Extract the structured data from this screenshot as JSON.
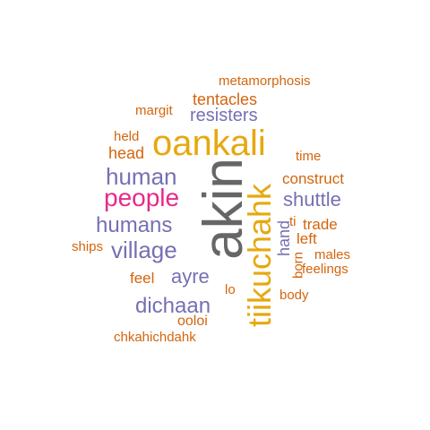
{
  "words": {
    "akin": "akin",
    "tiikuchahk": "tiikuchahk",
    "oankali": "oankali",
    "people": "people",
    "human": "human",
    "humans": "humans",
    "village": "village",
    "dichaan": "dichaan",
    "ayre": "ayre",
    "resisters": "resisters",
    "shuttle": "shuttle",
    "tentacles": "tentacles",
    "metamorphosis": "metamorphosis",
    "margit": "margit",
    "held": "held",
    "head": "head",
    "time": "time",
    "construct": "construct",
    "trade": "trade",
    "left": "left",
    "males": "males",
    "feelings": "feelings",
    "body": "body",
    "hand": "hand",
    "born": "born",
    "ti": "ti",
    "ships": "ships",
    "feel": "feel",
    "lo": "lo",
    "ooloi": "ooloi",
    "chkahichdahk": "chkahichdahk"
  },
  "colors": {
    "orange": "#d4650c",
    "gold": "#e6a80e",
    "purple": "#7570b3",
    "pink": "#e7298a",
    "gray": "#666666"
  }
}
